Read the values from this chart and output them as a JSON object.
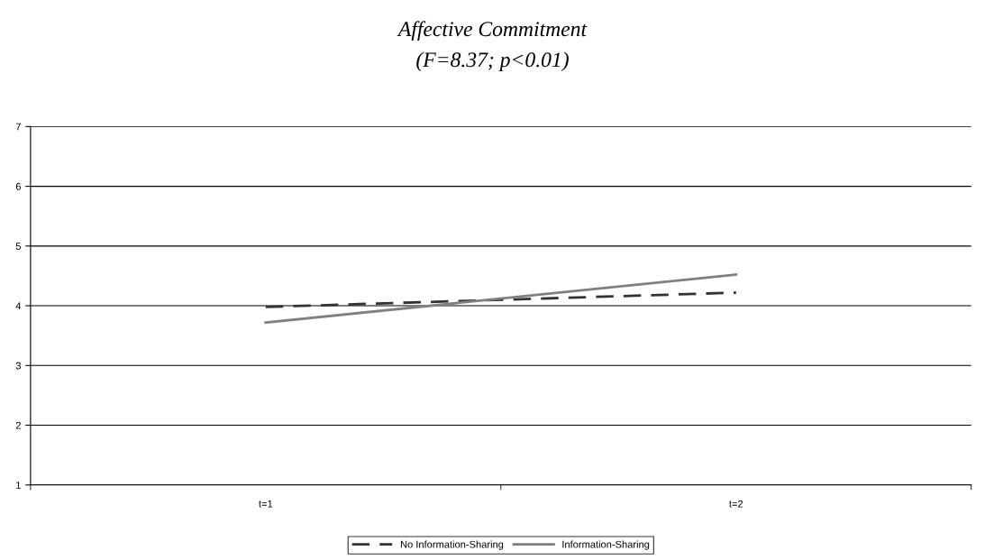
{
  "chart_data": {
    "type": "line",
    "title": "Affective Commitment",
    "subtitle": "(F=8.37; p<0.01)",
    "categories": [
      "t=1",
      "t=2"
    ],
    "series": [
      {
        "name": "No Information-Sharing",
        "color": "#333333",
        "values": [
          3.98,
          4.22
        ],
        "line_style": "dashed"
      },
      {
        "name": "Information-Sharing",
        "color": "#808080",
        "values": [
          3.72,
          4.52
        ],
        "line_style": "solid"
      }
    ],
    "ylim": [
      1,
      7
    ],
    "yticks": [
      1,
      2,
      3,
      4,
      5,
      6,
      7
    ],
    "grid": "y",
    "legend": "bottom",
    "marker": "none"
  }
}
